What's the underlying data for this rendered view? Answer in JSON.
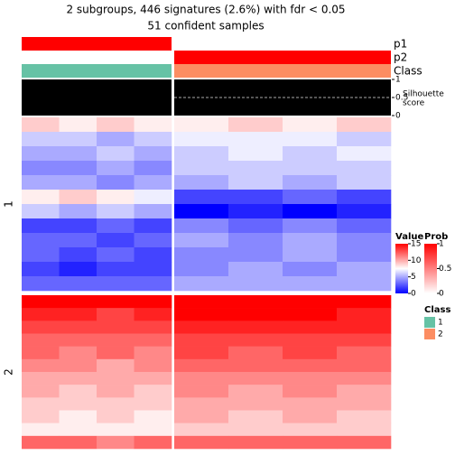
{
  "chart_data": {
    "type": "heatmap",
    "title": "2 subgroups, 446 signatures (2.6%) with fdr < 0.05",
    "subtitle": "51 confident samples",
    "annotation_labels": {
      "p1": "p1",
      "p2": "p2",
      "class": "Class",
      "silhouette": "Silhouette\nscore"
    },
    "groups": [
      {
        "class": 1,
        "p1": 1,
        "p2": 0,
        "silhouette": 1
      },
      {
        "class": 2,
        "p1": 0,
        "p2": 1,
        "silhouette": 1
      }
    ],
    "silhouette_ylim": [
      0,
      1
    ],
    "silhouette_ticks": [
      1,
      0.5,
      0
    ],
    "slices": [
      {
        "label": "1",
        "values": [
          [
            9,
            8,
            9,
            8,
            8,
            9,
            8,
            9
          ],
          [
            6,
            6,
            5,
            6,
            7,
            7,
            7,
            6
          ],
          [
            5,
            5,
            6,
            5,
            6,
            7,
            6,
            7
          ],
          [
            4,
            4,
            5,
            4,
            6,
            6,
            6,
            6
          ],
          [
            5,
            5,
            4,
            5,
            5,
            6,
            5,
            6
          ],
          [
            8,
            9,
            8,
            7,
            2,
            2,
            3,
            2
          ],
          [
            6,
            5,
            6,
            5,
            0,
            1,
            0,
            1
          ],
          [
            2,
            2,
            3,
            2,
            4,
            3,
            4,
            3
          ],
          [
            3,
            3,
            2,
            3,
            5,
            4,
            5,
            4
          ],
          [
            3,
            2,
            3,
            2,
            4,
            4,
            5,
            4
          ],
          [
            2,
            1,
            2,
            2,
            4,
            5,
            4,
            5
          ],
          [
            3,
            3,
            3,
            3,
            5,
            5,
            5,
            5
          ]
        ]
      },
      {
        "label": "2",
        "values": [
          [
            15,
            15,
            15,
            15,
            15,
            15,
            15,
            15
          ],
          [
            14,
            14,
            13,
            14,
            15,
            15,
            15,
            14
          ],
          [
            13,
            13,
            13,
            13,
            14,
            14,
            14,
            14
          ],
          [
            12,
            12,
            12,
            12,
            13,
            13,
            13,
            13
          ],
          [
            12,
            11,
            12,
            11,
            13,
            12,
            13,
            12
          ],
          [
            11,
            11,
            10,
            11,
            12,
            12,
            12,
            12
          ],
          [
            10,
            10,
            10,
            10,
            11,
            11,
            11,
            11
          ],
          [
            10,
            9,
            10,
            9,
            11,
            10,
            11,
            10
          ],
          [
            9,
            9,
            9,
            9,
            10,
            10,
            10,
            10
          ],
          [
            9,
            8,
            9,
            8,
            10,
            9,
            10,
            9
          ],
          [
            8,
            8,
            8,
            8,
            9,
            9,
            9,
            9
          ],
          [
            12,
            12,
            11,
            12,
            12,
            12,
            12,
            12
          ]
        ]
      }
    ],
    "value_legend": {
      "title": "Value",
      "lim": [
        0,
        15
      ],
      "ticks": [
        15,
        10,
        5,
        0
      ]
    },
    "prob_legend": {
      "title": "Prob",
      "lim": [
        0,
        1
      ],
      "ticks": [
        1,
        0.5,
        0
      ]
    },
    "class_legend": {
      "title": "Class",
      "entries": [
        {
          "label": "1",
          "color": "#66c2a5"
        },
        {
          "label": "2",
          "color": "#fc8d62"
        }
      ]
    }
  }
}
